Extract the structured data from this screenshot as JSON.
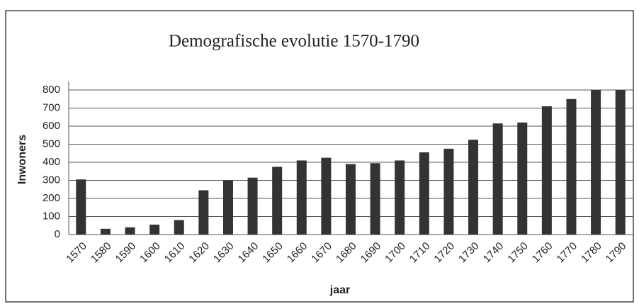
{
  "chart_data": {
    "type": "bar",
    "title": "Demografische evolutie 1570-1790",
    "x_label": "jaar",
    "y_label": "Inwoners",
    "categories": [
      "1570",
      "1580",
      "1590",
      "1600",
      "1610",
      "1620",
      "1630",
      "1640",
      "1650",
      "1660",
      "1670",
      "1680",
      "1690",
      "1700",
      "1710",
      "1720",
      "1730",
      "1740",
      "1750",
      "1760",
      "1770",
      "1780",
      "1790"
    ],
    "values": [
      305,
      32,
      40,
      55,
      80,
      245,
      300,
      315,
      375,
      410,
      425,
      390,
      395,
      410,
      455,
      475,
      525,
      615,
      620,
      710,
      750,
      800,
      800
    ],
    "color": "#333333",
    "ylim": [
      0,
      800
    ],
    "yticks": [
      0,
      100,
      200,
      300,
      400,
      500,
      600,
      700,
      800
    ],
    "grid": true
  }
}
